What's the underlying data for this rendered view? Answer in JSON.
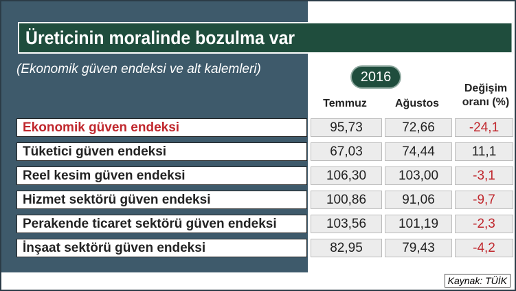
{
  "header": {
    "title": "Üreticinin moralinde bozulma var",
    "subtitle": "(Ekonomik güven endeksi ve alt kalemleri)",
    "year": "2016"
  },
  "table": {
    "columns": [
      "Temmuz",
      "Ağustos",
      "Değişim oranı (%)"
    ],
    "rows": [
      [
        "Ekonomik güven endeksi",
        "95,73",
        "72,66",
        "-24,1"
      ],
      [
        "Tüketici güven endeksi",
        "67,03",
        "74,44",
        "11,1"
      ],
      [
        "Reel kesim güven endeksi",
        "106,30",
        "103,00",
        "-3,1"
      ],
      [
        "Hizmet sektörü güven endeksi",
        "100,86",
        "91,06",
        "-9,7"
      ],
      [
        "Perakende ticaret sektörü güven endeksi",
        "103,56",
        "101,19",
        "-2,3"
      ],
      [
        "İnşaat sektörü güven endeksi",
        "82,95",
        "79,43",
        "-4,2"
      ]
    ]
  },
  "source": "Kaynak: TÜİK"
}
